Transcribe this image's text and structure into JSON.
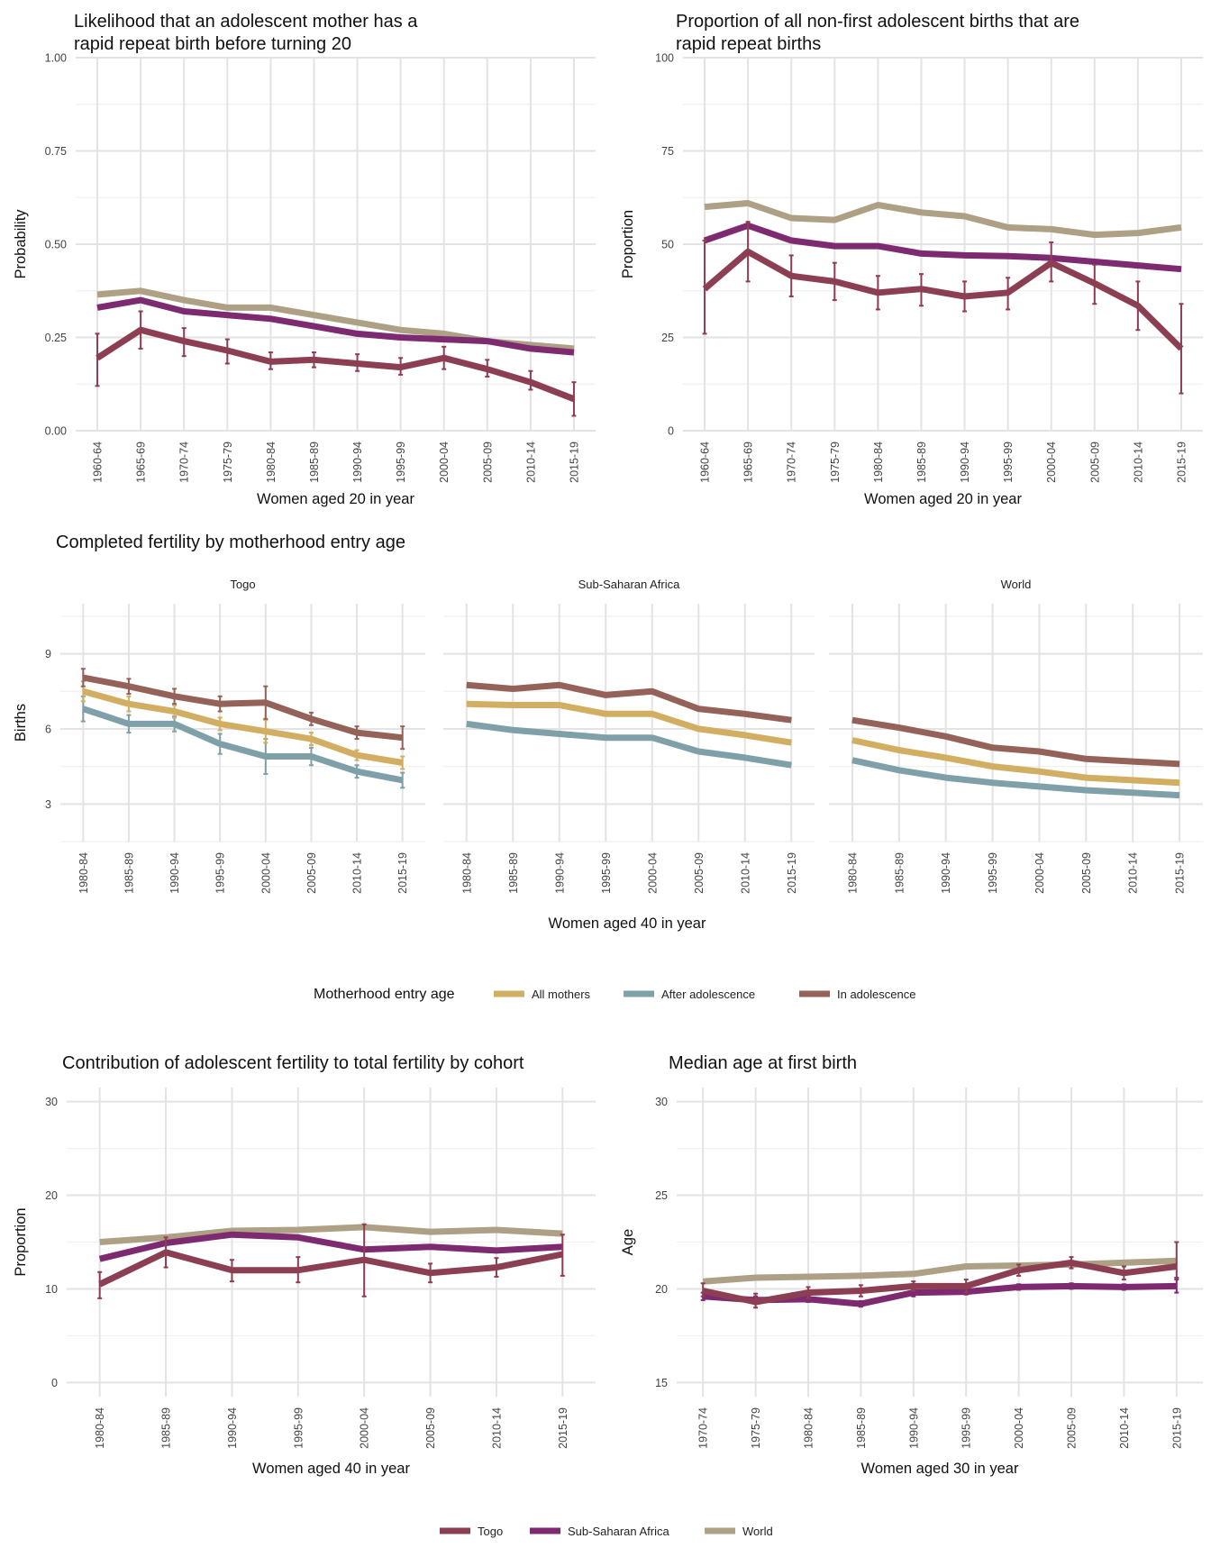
{
  "colors": {
    "togo": "#8C3F52",
    "ssa": "#7E2A70",
    "world": "#ADA084",
    "all_mothers": "#D2AE62",
    "after_adolescence": "#7FA0A8",
    "in_adolescence": "#946258",
    "grid_major": "#E3E3E3",
    "grid_minor": "#F0F0F0"
  },
  "legend_countries": {
    "title": "",
    "items": [
      {
        "label": "Togo",
        "color_key": "togo"
      },
      {
        "label": "Sub-Saharan Africa",
        "color_key": "ssa"
      },
      {
        "label": "World",
        "color_key": "world"
      }
    ]
  },
  "legend_entry": {
    "title": "Motherhood entry age",
    "items": [
      {
        "label": "All mothers",
        "color_key": "all_mothers"
      },
      {
        "label": "After adolescence",
        "color_key": "after_adolescence"
      },
      {
        "label": "In adolescence",
        "color_key": "in_adolescence"
      }
    ]
  },
  "chart_data": [
    {
      "id": "rapid_prob",
      "type": "line",
      "title_lines": [
        "Likelihood that an adolescent mother has a",
        "rapid repeat birth before turning 20"
      ],
      "xlabel": "Women aged 20 in year",
      "ylabel": "Probability",
      "categories": [
        "1960-64",
        "1965-69",
        "1970-74",
        "1975-79",
        "1980-84",
        "1985-89",
        "1990-94",
        "1995-99",
        "2000-04",
        "2005-09",
        "2010-14",
        "2015-19"
      ],
      "ylim": [
        0,
        1
      ],
      "yticks": [
        0,
        0.25,
        0.5,
        0.75,
        1.0
      ],
      "ytick_labels": [
        "0.00",
        "0.25",
        "0.50",
        "0.75",
        "1.00"
      ],
      "grid": true,
      "series": [
        {
          "name": "World",
          "color_key": "world",
          "values": [
            0.365,
            0.375,
            0.35,
            0.33,
            0.33,
            0.31,
            0.29,
            0.27,
            0.26,
            0.24,
            0.23,
            0.22
          ]
        },
        {
          "name": "Sub-Saharan Africa",
          "color_key": "ssa",
          "values": [
            0.33,
            0.35,
            0.32,
            0.31,
            0.3,
            0.28,
            0.26,
            0.25,
            0.245,
            0.24,
            0.22,
            0.21
          ]
        },
        {
          "name": "Togo",
          "color_key": "togo",
          "values": [
            0.195,
            0.27,
            0.24,
            0.215,
            0.185,
            0.19,
            0.18,
            0.17,
            0.195,
            0.165,
            0.13,
            0.085
          ],
          "errors": [
            [
              0.12,
              0.26
            ],
            [
              0.22,
              0.32
            ],
            [
              0.2,
              0.275
            ],
            [
              0.18,
              0.245
            ],
            [
              0.165,
              0.21
            ],
            [
              0.17,
              0.21
            ],
            [
              0.16,
              0.205
            ],
            [
              0.15,
              0.195
            ],
            [
              0.165,
              0.225
            ],
            [
              0.145,
              0.19
            ],
            [
              0.11,
              0.16
            ],
            [
              0.04,
              0.13
            ]
          ]
        }
      ]
    },
    {
      "id": "rapid_prop",
      "type": "line",
      "title_lines": [
        "Proportion of all non-first adolescent births that are",
        "rapid repeat births"
      ],
      "xlabel": "Women aged 20 in year",
      "ylabel": "Proportion",
      "categories": [
        "1960-64",
        "1965-69",
        "1970-74",
        "1975-79",
        "1980-84",
        "1985-89",
        "1990-94",
        "1995-99",
        "2000-04",
        "2005-09",
        "2010-14",
        "2015-19"
      ],
      "ylim": [
        0,
        100
      ],
      "yticks": [
        0,
        25,
        50,
        75,
        100
      ],
      "ytick_labels": [
        "0",
        "25",
        "50",
        "75",
        "100"
      ],
      "grid": true,
      "series": [
        {
          "name": "World",
          "color_key": "world",
          "values": [
            60,
            61,
            57,
            56.5,
            60.5,
            58.5,
            57.5,
            54.5,
            54,
            52.5,
            53,
            54.5
          ]
        },
        {
          "name": "Sub-Saharan Africa",
          "color_key": "ssa",
          "values": [
            51,
            55,
            51,
            49.5,
            49.5,
            47.5,
            47,
            46.8,
            46.3,
            45.3,
            44.3,
            43.3
          ]
        },
        {
          "name": "Togo",
          "color_key": "togo",
          "values": [
            38,
            48,
            41.5,
            40,
            37,
            38,
            36,
            37,
            45,
            39.5,
            33.5,
            22
          ],
          "errors": [
            [
              26,
              51
            ],
            [
              40,
              56
            ],
            [
              36,
              47
            ],
            [
              35,
              45
            ],
            [
              32.5,
              41.5
            ],
            [
              33.5,
              42
            ],
            [
              32,
              40
            ],
            [
              32.5,
              41
            ],
            [
              40,
              50.5
            ],
            [
              34,
              44.5
            ],
            [
              27,
              40
            ],
            [
              10,
              34
            ]
          ]
        }
      ]
    },
    {
      "id": "completed_fertility",
      "type": "line",
      "title": "Completed fertility by motherhood entry age",
      "xlabel": "Women aged 40 in year",
      "ylabel": "Births",
      "categories": [
        "1980-84",
        "1985-89",
        "1990-94",
        "1995-99",
        "2000-04",
        "2005-09",
        "2010-14",
        "2015-19"
      ],
      "ylim": [
        1.5,
        11
      ],
      "yticks": [
        3,
        6,
        9
      ],
      "ytick_labels": [
        "3",
        "6",
        "9"
      ],
      "grid": true,
      "facets": [
        {
          "name": "Togo",
          "series": [
            {
              "name": "After adolescence",
              "color_key": "after_adolescence",
              "values": [
                6.8,
                6.2,
                6.2,
                5.4,
                4.9,
                4.9,
                4.3,
                3.95
              ],
              "errors": [
                [
                  6.3,
                  7.3
                ],
                [
                  5.85,
                  6.55
                ],
                [
                  5.9,
                  6.5
                ],
                [
                  5.0,
                  5.8
                ],
                [
                  4.2,
                  5.6
                ],
                [
                  4.55,
                  5.25
                ],
                [
                  4.05,
                  4.55
                ],
                [
                  3.65,
                  4.25
                ]
              ]
            },
            {
              "name": "All mothers",
              "color_key": "all_mothers",
              "values": [
                7.5,
                7.0,
                6.7,
                6.2,
                5.9,
                5.6,
                4.95,
                4.65
              ],
              "errors": [
                [
                  7.1,
                  7.9
                ],
                [
                  6.7,
                  7.3
                ],
                [
                  6.45,
                  6.95
                ],
                [
                  5.95,
                  6.45
                ],
                [
                  5.45,
                  6.35
                ],
                [
                  5.35,
                  5.85
                ],
                [
                  4.75,
                  5.15
                ],
                [
                  4.4,
                  4.9
                ]
              ]
            },
            {
              "name": "In adolescence",
              "color_key": "in_adolescence",
              "values": [
                8.05,
                7.7,
                7.3,
                7.0,
                7.05,
                6.4,
                5.85,
                5.65
              ],
              "errors": [
                [
                  7.7,
                  8.4
                ],
                [
                  7.4,
                  8.0
                ],
                [
                  7.0,
                  7.6
                ],
                [
                  6.7,
                  7.3
                ],
                [
                  6.4,
                  7.7
                ],
                [
                  6.15,
                  6.65
                ],
                [
                  5.6,
                  6.1
                ],
                [
                  5.2,
                  6.1
                ]
              ]
            }
          ]
        },
        {
          "name": "Sub-Saharan Africa",
          "series": [
            {
              "name": "After adolescence",
              "color_key": "after_adolescence",
              "values": [
                6.2,
                5.95,
                5.8,
                5.65,
                5.65,
                5.1,
                4.85,
                4.55
              ]
            },
            {
              "name": "All mothers",
              "color_key": "all_mothers",
              "values": [
                7.0,
                6.95,
                6.95,
                6.6,
                6.6,
                6.0,
                5.75,
                5.45
              ]
            },
            {
              "name": "In adolescence",
              "color_key": "in_adolescence",
              "values": [
                7.75,
                7.6,
                7.75,
                7.35,
                7.5,
                6.8,
                6.6,
                6.35
              ]
            }
          ]
        },
        {
          "name": "World",
          "series": [
            {
              "name": "After adolescence",
              "color_key": "after_adolescence",
              "values": [
                4.75,
                4.35,
                4.05,
                3.85,
                3.7,
                3.55,
                3.45,
                3.35
              ]
            },
            {
              "name": "All mothers",
              "color_key": "all_mothers",
              "values": [
                5.55,
                5.15,
                4.85,
                4.5,
                4.3,
                4.05,
                3.95,
                3.85
              ]
            },
            {
              "name": "In adolescence",
              "color_key": "in_adolescence",
              "values": [
                6.35,
                6.05,
                5.7,
                5.25,
                5.1,
                4.8,
                4.7,
                4.6
              ]
            }
          ]
        }
      ]
    },
    {
      "id": "adolescent_contribution",
      "type": "line",
      "title": "Contribution of adolescent fertility to total fertility by cohort",
      "xlabel": "Women aged 40 in year",
      "ylabel": "Proportion",
      "categories": [
        "1980-84",
        "1985-89",
        "1990-94",
        "1995-99",
        "2000-04",
        "2005-09",
        "2010-14",
        "2015-19"
      ],
      "ylim": [
        -1.5,
        31.5
      ],
      "yticks": [
        0,
        10,
        20,
        30
      ],
      "ytick_labels": [
        "0",
        "10",
        "20",
        "30"
      ],
      "grid": true,
      "series": [
        {
          "name": "World",
          "color_key": "world",
          "values": [
            15.0,
            15.5,
            16.2,
            16.3,
            16.6,
            16.1,
            16.3,
            15.9
          ]
        },
        {
          "name": "Sub-Saharan Africa",
          "color_key": "ssa",
          "values": [
            13.2,
            14.9,
            15.8,
            15.5,
            14.2,
            14.5,
            14.1,
            14.5
          ]
        },
        {
          "name": "Togo",
          "color_key": "togo",
          "values": [
            10.5,
            13.9,
            12.0,
            12.0,
            13.1,
            11.7,
            12.3,
            13.7
          ],
          "errors": [
            [
              9.0,
              11.8
            ],
            [
              12.3,
              15.5
            ],
            [
              10.8,
              13.1
            ],
            [
              10.7,
              13.4
            ],
            [
              9.2,
              16.9
            ],
            [
              10.7,
              12.7
            ],
            [
              11.3,
              13.3
            ],
            [
              11.4,
              15.8
            ]
          ]
        }
      ]
    },
    {
      "id": "median_age",
      "type": "line",
      "title": "Median age at first birth",
      "xlabel": "Women aged 30 in year",
      "ylabel": "Age",
      "categories": [
        "1970-74",
        "1975-79",
        "1980-84",
        "1985-89",
        "1990-94",
        "1995-99",
        "2000-04",
        "2005-09",
        "2010-14",
        "2015-19"
      ],
      "ylim": [
        14.25,
        30.75
      ],
      "yticks": [
        15,
        20,
        25,
        30
      ],
      "ytick_labels": [
        "15",
        "20",
        "25",
        "30"
      ],
      "grid": true,
      "series": [
        {
          "name": "World",
          "color_key": "world",
          "values": [
            20.4,
            20.6,
            20.65,
            20.7,
            20.8,
            21.2,
            21.25,
            21.3,
            21.4,
            21.5
          ]
        },
        {
          "name": "Sub-Saharan Africa",
          "color_key": "ssa",
          "values": [
            19.6,
            19.4,
            19.45,
            19.2,
            19.8,
            19.85,
            20.1,
            20.15,
            20.1,
            20.15
          ],
          "errors": [
            [
              19.4,
              19.8
            ],
            [
              19.2,
              19.6
            ],
            [
              19.3,
              19.6
            ],
            [
              19.05,
              19.35
            ],
            [
              19.6,
              20.0
            ],
            [
              19.7,
              20.0
            ],
            [
              19.95,
              20.25
            ],
            [
              20.0,
              20.3
            ],
            [
              19.95,
              20.25
            ],
            [
              19.8,
              20.5
            ]
          ]
        },
        {
          "name": "Togo",
          "color_key": "togo",
          "values": [
            19.9,
            19.3,
            19.8,
            19.9,
            20.15,
            20.15,
            21.0,
            21.4,
            20.85,
            21.2
          ],
          "errors": [
            [
              19.6,
              20.3
            ],
            [
              19.0,
              19.75
            ],
            [
              19.5,
              20.1
            ],
            [
              19.6,
              20.2
            ],
            [
              19.9,
              20.4
            ],
            [
              19.8,
              20.5
            ],
            [
              20.7,
              21.3
            ],
            [
              21.1,
              21.7
            ],
            [
              20.5,
              21.2
            ],
            [
              20.6,
              22.5
            ]
          ]
        }
      ]
    }
  ]
}
